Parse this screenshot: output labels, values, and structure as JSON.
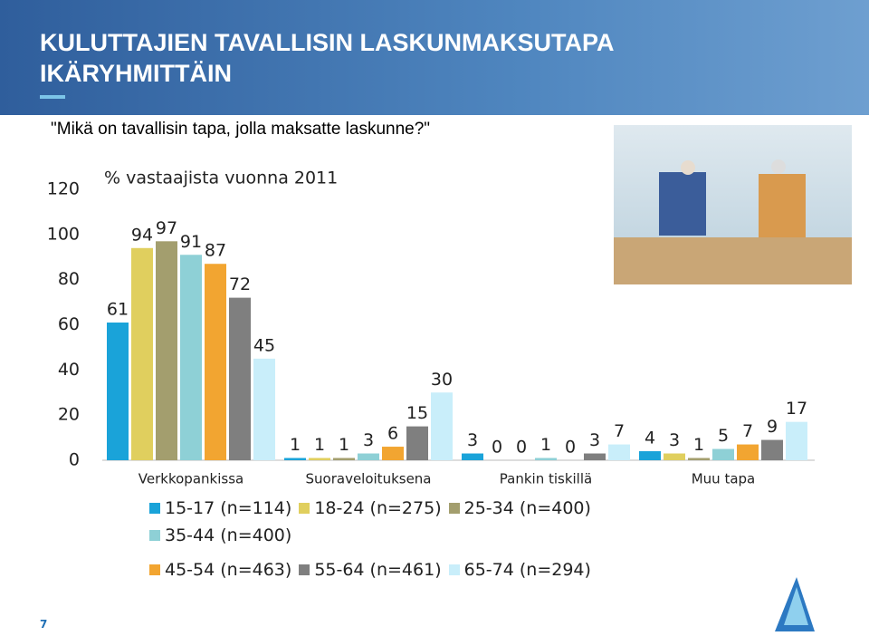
{
  "header": {
    "title": "KULUTTAJIEN TAVALLISIN LASKUNMAKSUTAPA IKÄRYHMITTÄIN",
    "question": "\"Mikä on tavallisin tapa, jolla maksatte laskunne?\""
  },
  "chart_data": {
    "type": "bar",
    "subtitle": "% vastaajista vuonna 2011",
    "categories": [
      "Verkkopankissa",
      "Suoraveloituksena",
      "Pankin tiskillä",
      "Muu tapa"
    ],
    "series": [
      {
        "name": "15-17 (n=114)",
        "color": "#1aa3d9",
        "values": [
          61,
          1,
          3,
          4
        ]
      },
      {
        "name": "18-24 (n=275)",
        "color": "#e0cf5e",
        "values": [
          94,
          1,
          0,
          3
        ]
      },
      {
        "name": "25-34 (n=400)",
        "color": "#a39e6e",
        "values": [
          97,
          1,
          0,
          1
        ]
      },
      {
        "name": "35-44 (n=400)",
        "color": "#8ed0d6",
        "values": [
          91,
          3,
          1,
          5
        ]
      },
      {
        "name": "45-54 (n=463)",
        "color": "#f2a531",
        "values": [
          87,
          6,
          0,
          7
        ]
      },
      {
        "name": "55-64 (n=461)",
        "color": "#7f7f7f",
        "values": [
          72,
          15,
          3,
          9
        ]
      },
      {
        "name": "65-74 (n=294)",
        "color": "#c9eefa",
        "values": [
          45,
          30,
          7,
          17
        ]
      }
    ],
    "ylim": [
      0,
      120
    ],
    "yticks": [
      0,
      20,
      40,
      60,
      80,
      100,
      120
    ],
    "grid": false
  },
  "page_number": "7"
}
